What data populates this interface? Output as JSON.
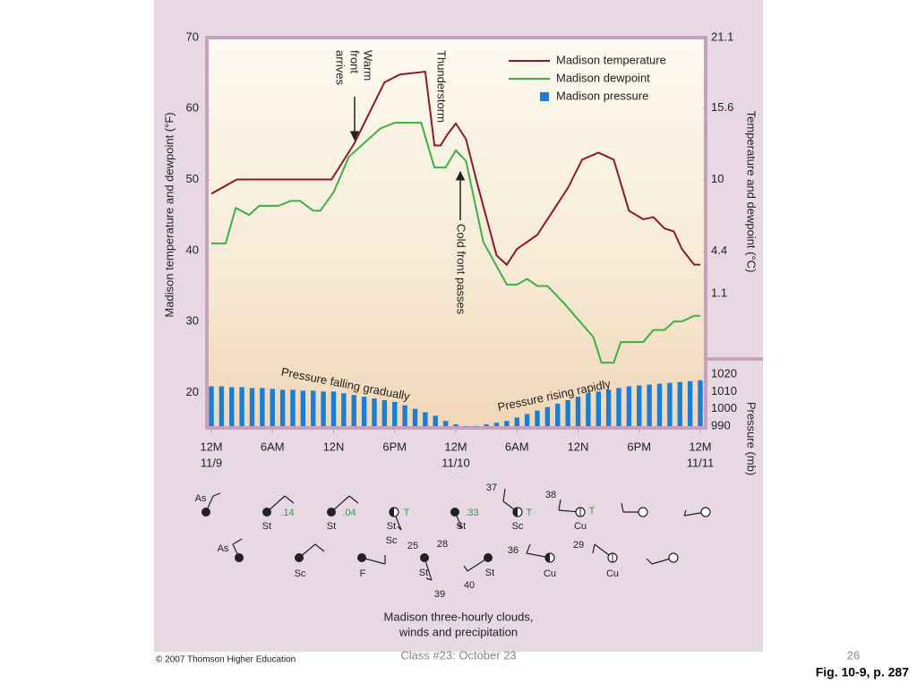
{
  "chart_data": {
    "type": "line",
    "y_label": "Madison temperature and dewpoint (°F)",
    "y2_label": "Temperature and dewpoint (°C)",
    "pressure_label": "Pressure (mb)",
    "xlim": [
      0,
      48
    ],
    "xticks": [
      {
        "value": 0,
        "label": "12M"
      },
      {
        "value": 6,
        "label": "6AM"
      },
      {
        "value": 12,
        "label": "12N"
      },
      {
        "value": 18,
        "label": "6PM"
      },
      {
        "value": 24,
        "label": "12M"
      },
      {
        "value": 30,
        "label": "6AM"
      },
      {
        "value": 36,
        "label": "12N"
      },
      {
        "value": 42,
        "label": "6PM"
      },
      {
        "value": 48,
        "label": "12M"
      }
    ],
    "xdates": [
      {
        "value": 0,
        "label": "11/9"
      },
      {
        "value": 24,
        "label": "11/10"
      },
      {
        "value": 48,
        "label": "11/11"
      }
    ],
    "ylim": [
      15,
      70
    ],
    "yticks": [
      20,
      30,
      40,
      50,
      60,
      70
    ],
    "y2lim": [
      -9.4,
      21.1
    ],
    "y2ticks": [
      21.1,
      15.6,
      10,
      4.4,
      1.1
    ],
    "pressure_lim": [
      990,
      1020
    ],
    "pressure_ticks": [
      990,
      1000,
      1010,
      1020
    ],
    "series": [
      {
        "name": "Madison temperature",
        "color": "#8b1a2b",
        "x": [
          0,
          2.5,
          11.8,
          14,
          17,
          18.5,
          21,
          21.9,
          22.5,
          23.2,
          24,
          25,
          26,
          28,
          29,
          30,
          32,
          33,
          35,
          36.4,
          38,
          39.5,
          41,
          42.4,
          43.4,
          44.5,
          45.4,
          46.2,
          47.4,
          48
        ],
        "values": [
          48,
          50,
          50,
          55,
          63.7,
          64.8,
          65.2,
          54.8,
          54.8,
          56.4,
          57.9,
          55.7,
          50,
          39.3,
          38,
          40.2,
          42.2,
          44.4,
          48.8,
          52.8,
          53.8,
          52.8,
          45.6,
          44.4,
          44.7,
          43.1,
          42.7,
          40.2,
          38,
          38
        ]
      },
      {
        "name": "Madison dewpoint",
        "color": "#3cb043",
        "x": [
          0,
          1.4,
          2.4,
          3.7,
          4.7,
          6.6,
          7.8,
          8.7,
          10,
          10.7,
          12,
          13.5,
          16.6,
          18,
          20.6,
          21.9,
          23,
          24,
          25,
          26.7,
          29,
          30,
          31,
          32,
          33,
          34.6,
          37.5,
          38.3,
          39.5,
          40.2,
          42.4,
          43.4,
          44.5,
          45.4,
          46.2,
          47.4,
          48
        ],
        "values": [
          41,
          41,
          46,
          45,
          46.3,
          46.3,
          47,
          47,
          45.6,
          45.6,
          48.2,
          53.2,
          57.2,
          58,
          58,
          51.7,
          51.7,
          54.1,
          52.6,
          41.2,
          35.2,
          35.2,
          36,
          35,
          35,
          32.6,
          27.8,
          24.2,
          24.2,
          27.1,
          27.1,
          28.8,
          28.8,
          30,
          30,
          30.8,
          30.8
        ]
      },
      {
        "name": "Madison pressure",
        "color": "#1a7fd4",
        "type": "bar",
        "values": [
          1013,
          1013,
          1012.5,
          1012.5,
          1012,
          1012,
          1011.5,
          1011,
          1011,
          1010.5,
          1010.5,
          1010,
          1010,
          1009,
          1008,
          1007,
          1006,
          1005,
          1004,
          1002,
          1000,
          998,
          996,
          993,
          991,
          990,
          990,
          991,
          992,
          993,
          995,
          997,
          999,
          1001,
          1003,
          1005,
          1007,
          1009,
          1010,
          1011,
          1012,
          1013,
          1013.5,
          1014,
          1014.5,
          1015,
          1015.5,
          1016,
          1016.5
        ]
      }
    ],
    "annotations": {
      "warm_front": [
        "Warm",
        "front",
        "arrives"
      ],
      "thunderstorm": "Thunderstorm",
      "cold_front": "Cold front passes",
      "pressure_falling": "Pressure falling gradually",
      "pressure_rising": "Pressure rising rapidly"
    }
  },
  "stations": {
    "labels": [
      "As",
      ".14",
      "St",
      ".04",
      "St",
      "T",
      "St",
      "Sc",
      "25",
      ".33",
      "St",
      "28",
      "37",
      "T",
      "Sc",
      "38",
      "T",
      "Cu",
      "As",
      "Sc",
      "F",
      "St",
      "39",
      "St",
      "40",
      "36",
      "Cu",
      "29",
      "Cu"
    ],
    "caption": [
      "Madison three-hourly clouds,",
      "winds and precipitation"
    ]
  },
  "footer": {
    "credit": "© 2007 Thomson Higher Education",
    "slide": "Class #23:  October 23",
    "page": "26",
    "figure": "Fig. 10-9, p. 287"
  }
}
